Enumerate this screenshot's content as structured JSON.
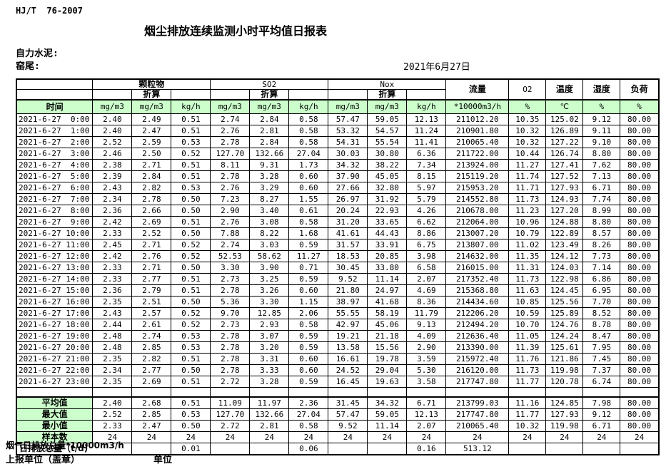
{
  "page": {
    "standard": "HJ/T  76-2007",
    "title": "烟尘排放连续监测小时平均值日报表",
    "company": "自力水泥:",
    "location": "窑尾:",
    "date": "2021年6月27日"
  },
  "table": {
    "groups": [
      {
        "label": "颗粒物"
      },
      {
        "label": "SO2"
      },
      {
        "label": "Nox"
      }
    ],
    "zhesuan_label": "折算",
    "singles": [
      {
        "label": "流量"
      },
      {
        "label": "O2"
      },
      {
        "label": "温度"
      },
      {
        "label": "湿度"
      },
      {
        "label": "负荷"
      }
    ],
    "units": [
      "时间",
      "mg/m3",
      "mg/m3",
      "kg/h",
      "mg/m3",
      "mg/m3",
      "kg/h",
      "mg/m3",
      "mg/m3",
      "kg/h",
      "*10000m3/h",
      "%",
      "℃",
      "%",
      "%"
    ],
    "rows": [
      {
        "time": "2021-6-27  0:00",
        "cells": [
          "2.40",
          "2.49",
          "0.51",
          "2.74",
          "2.84",
          "0.58",
          "57.47",
          "59.05",
          "12.13",
          "211012.20",
          "10.35",
          "125.02",
          "9.12",
          "80.00"
        ]
      },
      {
        "time": "2021-6-27  1:00",
        "cells": [
          "2.40",
          "2.47",
          "0.51",
          "2.76",
          "2.81",
          "0.58",
          "53.32",
          "54.57",
          "11.24",
          "210901.80",
          "10.32",
          "126.89",
          "9.11",
          "80.00"
        ]
      },
      {
        "time": "2021-6-27  2:00",
        "cells": [
          "2.52",
          "2.59",
          "0.53",
          "2.78",
          "2.84",
          "0.58",
          "54.31",
          "55.54",
          "11.41",
          "210065.40",
          "10.32",
          "127.22",
          "9.10",
          "80.00"
        ]
      },
      {
        "time": "2021-6-27  3:00",
        "cells": [
          "2.46",
          "2.50",
          "0.52",
          "127.70",
          "132.66",
          "27.04",
          "30.03",
          "30.80",
          "6.36",
          "211722.00",
          "10.44",
          "126.74",
          "8.80",
          "80.00"
        ]
      },
      {
        "time": "2021-6-27  4:00",
        "cells": [
          "2.38",
          "2.71",
          "0.51",
          "8.11",
          "9.31",
          "1.73",
          "34.32",
          "38.22",
          "7.34",
          "213924.00",
          "11.27",
          "127.41",
          "7.62",
          "80.00"
        ]
      },
      {
        "time": "2021-6-27  5:00",
        "cells": [
          "2.39",
          "2.84",
          "0.51",
          "2.78",
          "3.28",
          "0.60",
          "37.90",
          "45.05",
          "8.15",
          "215119.20",
          "11.74",
          "127.52",
          "7.13",
          "80.00"
        ]
      },
      {
        "time": "2021-6-27  6:00",
        "cells": [
          "2.43",
          "2.82",
          "0.53",
          "2.76",
          "3.29",
          "0.60",
          "27.66",
          "32.80",
          "5.97",
          "215953.20",
          "11.71",
          "127.93",
          "6.71",
          "80.00"
        ]
      },
      {
        "time": "2021-6-27  7:00",
        "cells": [
          "2.34",
          "2.78",
          "0.50",
          "7.23",
          "8.27",
          "1.55",
          "26.97",
          "31.92",
          "5.79",
          "214552.80",
          "11.73",
          "124.93",
          "7.74",
          "80.00"
        ]
      },
      {
        "time": "2021-6-27  8:00",
        "cells": [
          "2.36",
          "2.66",
          "0.50",
          "2.90",
          "3.40",
          "0.61",
          "20.24",
          "22.93",
          "4.26",
          "210678.00",
          "11.23",
          "127.20",
          "8.99",
          "80.00"
        ]
      },
      {
        "time": "2021-6-27  9:00",
        "cells": [
          "2.42",
          "2.69",
          "0.51",
          "2.76",
          "3.08",
          "0.58",
          "31.20",
          "33.65",
          "6.62",
          "212064.00",
          "10.96",
          "124.88",
          "8.80",
          "80.00"
        ]
      },
      {
        "time": "2021-6-27 10:00",
        "cells": [
          "2.33",
          "2.52",
          "0.50",
          "7.88",
          "8.22",
          "1.68",
          "41.61",
          "44.43",
          "8.86",
          "213007.20",
          "10.79",
          "122.89",
          "8.57",
          "80.00"
        ]
      },
      {
        "time": "2021-6-27 11:00",
        "cells": [
          "2.45",
          "2.71",
          "0.52",
          "2.74",
          "3.03",
          "0.59",
          "31.57",
          "33.91",
          "6.75",
          "213807.00",
          "11.02",
          "123.49",
          "8.26",
          "80.00"
        ]
      },
      {
        "time": "2021-6-27 12:00",
        "cells": [
          "2.42",
          "2.76",
          "0.52",
          "52.53",
          "58.62",
          "11.27",
          "18.53",
          "20.85",
          "3.98",
          "214632.00",
          "11.35",
          "124.12",
          "7.73",
          "80.00"
        ]
      },
      {
        "time": "2021-6-27 13:00",
        "cells": [
          "2.33",
          "2.71",
          "0.50",
          "3.30",
          "3.90",
          "0.71",
          "30.45",
          "33.80",
          "6.58",
          "216015.00",
          "11.31",
          "124.03",
          "7.14",
          "80.00"
        ]
      },
      {
        "time": "2021-6-27 14:00",
        "cells": [
          "2.33",
          "2.77",
          "0.51",
          "2.73",
          "3.25",
          "0.59",
          "9.52",
          "11.14",
          "2.07",
          "217352.40",
          "11.73",
          "122.98",
          "6.86",
          "80.00"
        ]
      },
      {
        "time": "2021-6-27 15:00",
        "cells": [
          "2.36",
          "2.79",
          "0.51",
          "2.78",
          "3.26",
          "0.60",
          "21.80",
          "24.97",
          "4.69",
          "215368.80",
          "11.63",
          "124.45",
          "6.95",
          "80.00"
        ]
      },
      {
        "time": "2021-6-27 16:00",
        "cells": [
          "2.35",
          "2.51",
          "0.50",
          "5.36",
          "3.30",
          "1.15",
          "38.97",
          "41.68",
          "8.36",
          "214434.60",
          "10.85",
          "125.56",
          "7.70",
          "80.00"
        ]
      },
      {
        "time": "2021-6-27 17:00",
        "cells": [
          "2.43",
          "2.57",
          "0.52",
          "9.70",
          "12.85",
          "2.06",
          "55.55",
          "58.19",
          "11.79",
          "212206.20",
          "10.59",
          "125.89",
          "8.52",
          "80.00"
        ]
      },
      {
        "time": "2021-6-27 18:00",
        "cells": [
          "2.44",
          "2.61",
          "0.52",
          "2.73",
          "2.93",
          "0.58",
          "42.97",
          "45.06",
          "9.13",
          "212494.20",
          "10.70",
          "124.76",
          "8.78",
          "80.00"
        ]
      },
      {
        "time": "2021-6-27 19:00",
        "cells": [
          "2.48",
          "2.74",
          "0.53",
          "2.78",
          "3.07",
          "0.59",
          "19.21",
          "21.18",
          "4.09",
          "212636.40",
          "11.05",
          "124.24",
          "8.47",
          "80.00"
        ]
      },
      {
        "time": "2021-6-27 20:00",
        "cells": [
          "2.48",
          "2.85",
          "0.53",
          "2.78",
          "3.20",
          "0.59",
          "13.58",
          "15.56",
          "2.90",
          "213390.00",
          "11.39",
          "125.61",
          "7.95",
          "80.00"
        ]
      },
      {
        "time": "2021-6-27 21:00",
        "cells": [
          "2.35",
          "2.82",
          "0.51",
          "2.78",
          "3.31",
          "0.60",
          "16.61",
          "19.78",
          "3.59",
          "215972.40",
          "11.76",
          "121.86",
          "7.45",
          "80.00"
        ]
      },
      {
        "time": "2021-6-27 22:00",
        "cells": [
          "2.34",
          "2.77",
          "0.50",
          "2.78",
          "3.33",
          "0.60",
          "24.52",
          "29.04",
          "5.30",
          "216120.00",
          "11.73",
          "119.98",
          "7.37",
          "80.00"
        ]
      },
      {
        "time": "2021-6-27 23:00",
        "cells": [
          "2.35",
          "2.69",
          "0.51",
          "2.72",
          "3.28",
          "0.59",
          "16.45",
          "19.63",
          "3.58",
          "217747.80",
          "11.77",
          "120.78",
          "6.74",
          "80.00"
        ]
      }
    ],
    "summary": [
      {
        "label": "平均值",
        "cells": [
          "2.40",
          "2.68",
          "0.51",
          "11.09",
          "11.97",
          "2.36",
          "31.45",
          "34.32",
          "6.71",
          "213799.03",
          "11.16",
          "124.85",
          "7.98",
          "80.00"
        ]
      },
      {
        "label": "最大值",
        "cells": [
          "2.52",
          "2.85",
          "0.53",
          "127.70",
          "132.66",
          "27.04",
          "57.47",
          "59.05",
          "12.13",
          "217747.80",
          "11.77",
          "127.93",
          "9.12",
          "80.00"
        ]
      },
      {
        "label": "最小值",
        "cells": [
          "2.33",
          "2.47",
          "0.50",
          "2.72",
          "2.81",
          "0.58",
          "9.52",
          "11.14",
          "2.07",
          "210065.40",
          "10.32",
          "119.98",
          "6.71",
          "80.00"
        ]
      },
      {
        "label": "样本数",
        "cells": [
          "24",
          "24",
          "24",
          "24",
          "24",
          "24",
          "24",
          "24",
          "24",
          "24",
          "24",
          "24",
          "24",
          "24"
        ]
      }
    ],
    "daily_total": {
      "label": "日排放总量（t/d)",
      "cells": [
        "",
        "0.01",
        "",
        "",
        "0.06",
        "",
        "",
        "0.16",
        "513.12",
        "",
        "",
        "",
        ""
      ]
    }
  },
  "footer": {
    "flue_total": "烟气日排放总量*10000m3/h",
    "report_unit": "上报单位（盖章）",
    "unit": "单位"
  }
}
